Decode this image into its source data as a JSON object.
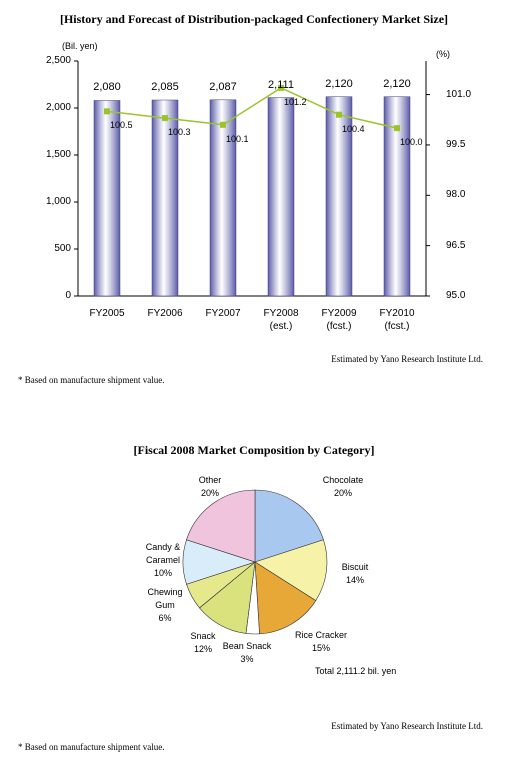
{
  "chart_data": [
    {
      "type": "bar",
      "title": "[History and Forecast of Distribution-packaged Confectionery Market Size]",
      "y_label": "(Bil. yen)",
      "y2_label": "(%)",
      "categories": [
        "FY2005",
        "FY2006",
        "FY2007",
        "FY2008\n(est.)",
        "FY2009\n(fcst.)",
        "FY2010\n(fcst.)"
      ],
      "series": [
        {
          "type": "bar",
          "color": "#5b5ba8",
          "values": [
            2080,
            2085,
            2087,
            2111,
            2120,
            2120
          ],
          "value_labels": [
            "2,080",
            "2,085",
            "2,087",
            "2,111",
            "2,120",
            "2,120"
          ]
        },
        {
          "type": "line",
          "axis": "y2",
          "color": "#9cc32c",
          "values": [
            100.5,
            100.3,
            100.1,
            101.2,
            100.4,
            100.0
          ],
          "value_labels": [
            "100.5",
            "100.3",
            "100.1",
            "101.2",
            "100.4",
            "100.0"
          ]
        }
      ],
      "ylim": [
        0,
        2500
      ],
      "yticks": [
        0,
        500,
        {
          "value": 1000,
          "label": "1,000"
        },
        {
          "value": 1500,
          "label": "1,500"
        },
        {
          "value": 2000,
          "label": "2,000"
        },
        {
          "value": 2500,
          "label": "2,500"
        }
      ],
      "y2lim": [
        95,
        102
      ],
      "y2ticks": [
        {
          "value": 95,
          "label": "95.0"
        },
        96.5,
        {
          "value": 98,
          "label": "98.0"
        },
        99.5,
        {
          "value": 101,
          "label": "101.0"
        }
      ],
      "source": "Estimated by Yano Research Institute Ltd.",
      "note": "* Based on manufacture shipment value."
    },
    {
      "type": "pie",
      "title": "[Fiscal 2008 Market Composition by Category]",
      "categories": [
        "Chocolate",
        "Biscuit",
        "Rice Cracker",
        "Bean Snack",
        "Snack",
        "Chewing\nGum",
        "Candy &\nCaramel",
        "Other"
      ],
      "values": [
        20,
        14,
        15,
        3,
        12,
        6,
        10,
        20
      ],
      "value_labels": [
        "20%",
        "14%",
        "15%",
        "3%",
        "12%",
        "6%",
        "10%",
        "20%"
      ],
      "colors": [
        "#a9c8f0",
        "#f6f2a8",
        "#e8a838",
        "#ffffff",
        "#d9e27c",
        "#e6e88c",
        "#d8ecfa",
        "#f0c4dc"
      ],
      "annotation": "Total 2,111.2 bil. yen",
      "source": "Estimated by Yano Research Institute Ltd.",
      "note": "* Based on manufacture shipment value."
    }
  ]
}
